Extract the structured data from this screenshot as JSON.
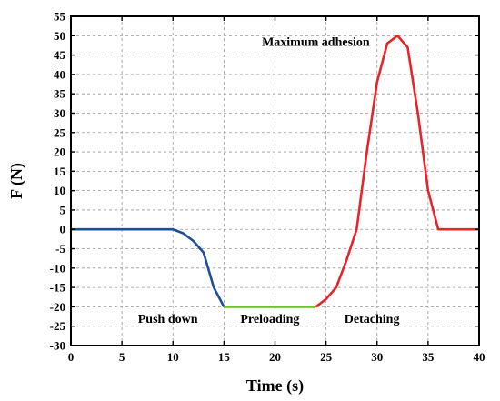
{
  "chart_data": {
    "type": "line",
    "title": "",
    "xlabel": "Time (s)",
    "ylabel": "F (N)",
    "xlim": [
      0,
      40
    ],
    "ylim": [
      -30,
      55
    ],
    "xticks": [
      0,
      5,
      10,
      15,
      20,
      25,
      30,
      35,
      40
    ],
    "yticks": [
      -30,
      -25,
      -20,
      -15,
      -10,
      -5,
      0,
      5,
      10,
      15,
      20,
      25,
      30,
      35,
      40,
      45,
      50,
      55
    ],
    "grid": true,
    "series": [
      {
        "color": "#1f4e9c",
        "x": [
          0,
          10,
          11,
          12,
          13,
          14,
          15
        ],
        "y": [
          0,
          0,
          -1,
          -3,
          -6,
          -15,
          -20
        ]
      },
      {
        "color": "#6cbf2a",
        "x": [
          15,
          24
        ],
        "y": [
          -20,
          -20
        ]
      },
      {
        "color": "#e8232a",
        "x": [
          24,
          25,
          26,
          27,
          28,
          29,
          30,
          31,
          32,
          33,
          34,
          35,
          36,
          40
        ],
        "y": [
          -20,
          -18,
          -15,
          -8,
          0,
          20,
          38,
          48,
          50,
          47,
          30,
          10,
          0,
          0
        ]
      }
    ],
    "annotations": [
      {
        "text": "Maximum adhesion",
        "x": 24,
        "y": 48.5
      },
      {
        "text": "Push down",
        "x": 9.5,
        "y": -23
      },
      {
        "text": "Preloading",
        "x": 19.5,
        "y": -23
      },
      {
        "text": "Detaching",
        "x": 29.5,
        "y": -23
      }
    ]
  }
}
